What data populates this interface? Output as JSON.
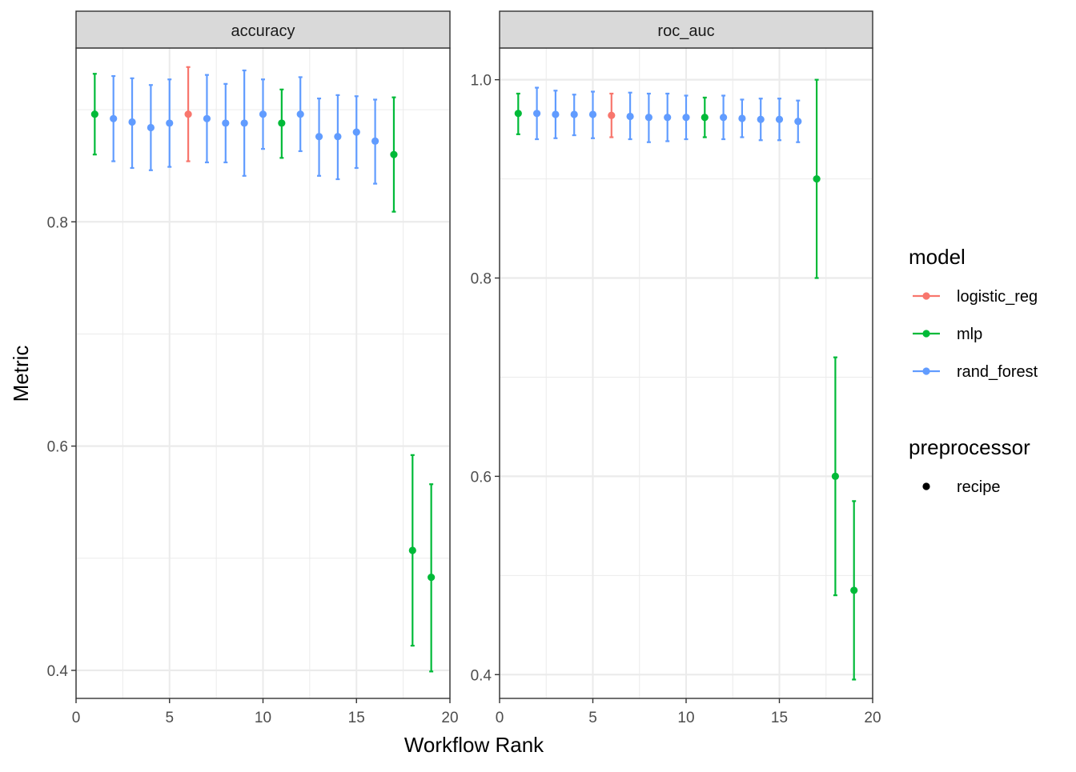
{
  "chart_data": {
    "type": "scatter",
    "xlabel": "Workflow Rank",
    "ylabel": "Metric",
    "xlim": [
      0,
      20
    ],
    "x_ticks": [
      0,
      5,
      10,
      15,
      20
    ],
    "grid": true,
    "legend_placement": "right",
    "legend": {
      "model_title": "model",
      "models": [
        {
          "name": "logistic_reg",
          "color": "#F8766D"
        },
        {
          "name": "mlp",
          "color": "#00BA38"
        },
        {
          "name": "rand_forest",
          "color": "#619CFF"
        }
      ],
      "preprocessor_title": "preprocessor",
      "preprocessors": [
        {
          "name": "recipe",
          "color": "#000000"
        }
      ]
    },
    "panels": [
      {
        "strip": "accuracy",
        "ylim": [
          0.375,
          0.955
        ],
        "y_ticks": [
          0.4,
          0.6,
          0.8
        ],
        "y_tick_labels": [
          "0.4",
          "0.6",
          "0.8"
        ],
        "y_minor": [
          0.5,
          0.7,
          0.9
        ],
        "points": [
          {
            "rank": 1,
            "model": "mlp",
            "mean": 0.896,
            "lower": 0.86,
            "upper": 0.932
          },
          {
            "rank": 2,
            "model": "rand_forest",
            "mean": 0.892,
            "lower": 0.854,
            "upper": 0.93
          },
          {
            "rank": 3,
            "model": "rand_forest",
            "mean": 0.889,
            "lower": 0.848,
            "upper": 0.928
          },
          {
            "rank": 4,
            "model": "rand_forest",
            "mean": 0.884,
            "lower": 0.846,
            "upper": 0.922
          },
          {
            "rank": 5,
            "model": "rand_forest",
            "mean": 0.888,
            "lower": 0.849,
            "upper": 0.927
          },
          {
            "rank": 6,
            "model": "logistic_reg",
            "mean": 0.896,
            "lower": 0.854,
            "upper": 0.938
          },
          {
            "rank": 7,
            "model": "rand_forest",
            "mean": 0.892,
            "lower": 0.853,
            "upper": 0.931
          },
          {
            "rank": 8,
            "model": "rand_forest",
            "mean": 0.888,
            "lower": 0.853,
            "upper": 0.923
          },
          {
            "rank": 9,
            "model": "rand_forest",
            "mean": 0.888,
            "lower": 0.841,
            "upper": 0.935
          },
          {
            "rank": 10,
            "model": "rand_forest",
            "mean": 0.896,
            "lower": 0.865,
            "upper": 0.927
          },
          {
            "rank": 11,
            "model": "mlp",
            "mean": 0.888,
            "lower": 0.857,
            "upper": 0.918
          },
          {
            "rank": 12,
            "model": "rand_forest",
            "mean": 0.896,
            "lower": 0.863,
            "upper": 0.929
          },
          {
            "rank": 13,
            "model": "rand_forest",
            "mean": 0.876,
            "lower": 0.841,
            "upper": 0.91
          },
          {
            "rank": 14,
            "model": "rand_forest",
            "mean": 0.876,
            "lower": 0.838,
            "upper": 0.913
          },
          {
            "rank": 15,
            "model": "rand_forest",
            "mean": 0.88,
            "lower": 0.848,
            "upper": 0.912
          },
          {
            "rank": 16,
            "model": "rand_forest",
            "mean": 0.872,
            "lower": 0.834,
            "upper": 0.909
          },
          {
            "rank": 17,
            "model": "mlp",
            "mean": 0.86,
            "lower": 0.809,
            "upper": 0.911
          },
          {
            "rank": 18,
            "model": "mlp",
            "mean": 0.507,
            "lower": 0.422,
            "upper": 0.592
          },
          {
            "rank": 19,
            "model": "mlp",
            "mean": 0.483,
            "lower": 0.399,
            "upper": 0.566
          }
        ]
      },
      {
        "strip": "roc_auc",
        "ylim": [
          0.376,
          1.032
        ],
        "y_ticks": [
          0.4,
          0.6,
          0.8,
          1.0
        ],
        "y_tick_labels": [
          "0.4",
          "0.6",
          "0.8",
          "1.0"
        ],
        "y_minor": [
          0.5,
          0.7,
          0.9
        ],
        "points": [
          {
            "rank": 1,
            "model": "mlp",
            "mean": 0.966,
            "lower": 0.945,
            "upper": 0.986
          },
          {
            "rank": 2,
            "model": "rand_forest",
            "mean": 0.966,
            "lower": 0.94,
            "upper": 0.992
          },
          {
            "rank": 3,
            "model": "rand_forest",
            "mean": 0.965,
            "lower": 0.941,
            "upper": 0.989
          },
          {
            "rank": 4,
            "model": "rand_forest",
            "mean": 0.965,
            "lower": 0.944,
            "upper": 0.985
          },
          {
            "rank": 5,
            "model": "rand_forest",
            "mean": 0.965,
            "lower": 0.941,
            "upper": 0.988
          },
          {
            "rank": 6,
            "model": "logistic_reg",
            "mean": 0.964,
            "lower": 0.942,
            "upper": 0.986
          },
          {
            "rank": 7,
            "model": "rand_forest",
            "mean": 0.963,
            "lower": 0.94,
            "upper": 0.987
          },
          {
            "rank": 8,
            "model": "rand_forest",
            "mean": 0.962,
            "lower": 0.937,
            "upper": 0.986
          },
          {
            "rank": 9,
            "model": "rand_forest",
            "mean": 0.962,
            "lower": 0.938,
            "upper": 0.986
          },
          {
            "rank": 10,
            "model": "rand_forest",
            "mean": 0.962,
            "lower": 0.94,
            "upper": 0.984
          },
          {
            "rank": 11,
            "model": "mlp",
            "mean": 0.962,
            "lower": 0.942,
            "upper": 0.982
          },
          {
            "rank": 12,
            "model": "rand_forest",
            "mean": 0.962,
            "lower": 0.94,
            "upper": 0.984
          },
          {
            "rank": 13,
            "model": "rand_forest",
            "mean": 0.961,
            "lower": 0.942,
            "upper": 0.98
          },
          {
            "rank": 14,
            "model": "rand_forest",
            "mean": 0.96,
            "lower": 0.939,
            "upper": 0.981
          },
          {
            "rank": 15,
            "model": "rand_forest",
            "mean": 0.96,
            "lower": 0.939,
            "upper": 0.981
          },
          {
            "rank": 16,
            "model": "rand_forest",
            "mean": 0.958,
            "lower": 0.937,
            "upper": 0.979
          },
          {
            "rank": 17,
            "model": "mlp",
            "mean": 0.9,
            "lower": 0.8,
            "upper": 1.0
          },
          {
            "rank": 18,
            "model": "mlp",
            "mean": 0.6,
            "lower": 0.48,
            "upper": 0.72
          },
          {
            "rank": 19,
            "model": "mlp",
            "mean": 0.485,
            "lower": 0.395,
            "upper": 0.575
          }
        ]
      }
    ]
  }
}
